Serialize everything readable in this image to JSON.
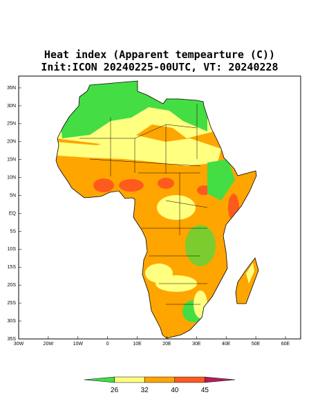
{
  "title": {
    "line1": "Heat index (Apparent tempearture (C))",
    "line2": "Init:ICON 20240225-00UTC, VT: 20240228"
  },
  "map": {
    "lat_labels": [
      "35N",
      "30N",
      "25N",
      "20N",
      "15N",
      "10N",
      "5N",
      "EQ",
      "5S",
      "10S",
      "15S",
      "20S",
      "25S",
      "30S",
      "35S"
    ],
    "lon_labels": [
      "30W",
      "20W",
      "10W",
      "0",
      "10E",
      "20E",
      "30E",
      "40E",
      "50E",
      "60E"
    ]
  },
  "colorbar": {
    "levels": [
      26,
      32,
      40,
      45
    ],
    "colors": [
      "#44dd44",
      "#ffff80",
      "#ffa500",
      "#ff5a1e",
      "#b0205a"
    ]
  }
}
